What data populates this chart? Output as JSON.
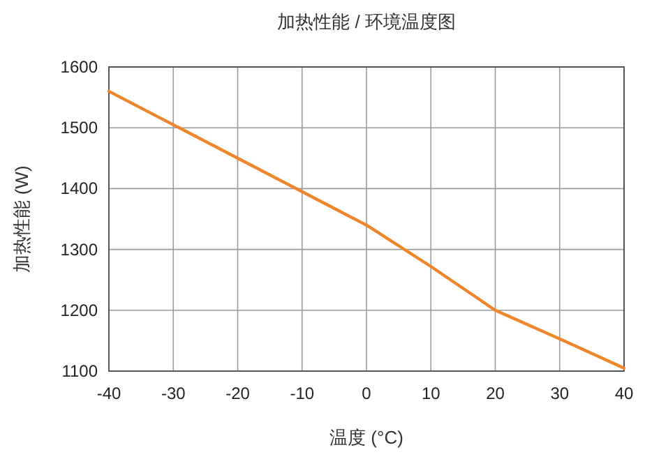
{
  "chart_data": {
    "type": "line",
    "title": "加热性能 / 环境温度图",
    "xlabel": "温度 (°C)",
    "ylabel": "加热性能 (W)",
    "x": [
      -40,
      -30,
      -20,
      -10,
      0,
      10,
      20,
      30,
      40
    ],
    "series": [
      {
        "color": "#f0862a",
        "values": [
          1560,
          1505,
          1450,
          1395,
          1340,
          1272,
          1200,
          1153,
          1105
        ]
      }
    ],
    "xlim": [
      -40,
      40
    ],
    "xticks": [
      -40,
      -30,
      -20,
      -10,
      0,
      10,
      20,
      30,
      40
    ],
    "ylim": [
      1100,
      1600
    ],
    "yticks": [
      1100,
      1200,
      1300,
      1400,
      1500,
      1600
    ],
    "grid": true,
    "marker": "none",
    "line_style": "solid"
  }
}
